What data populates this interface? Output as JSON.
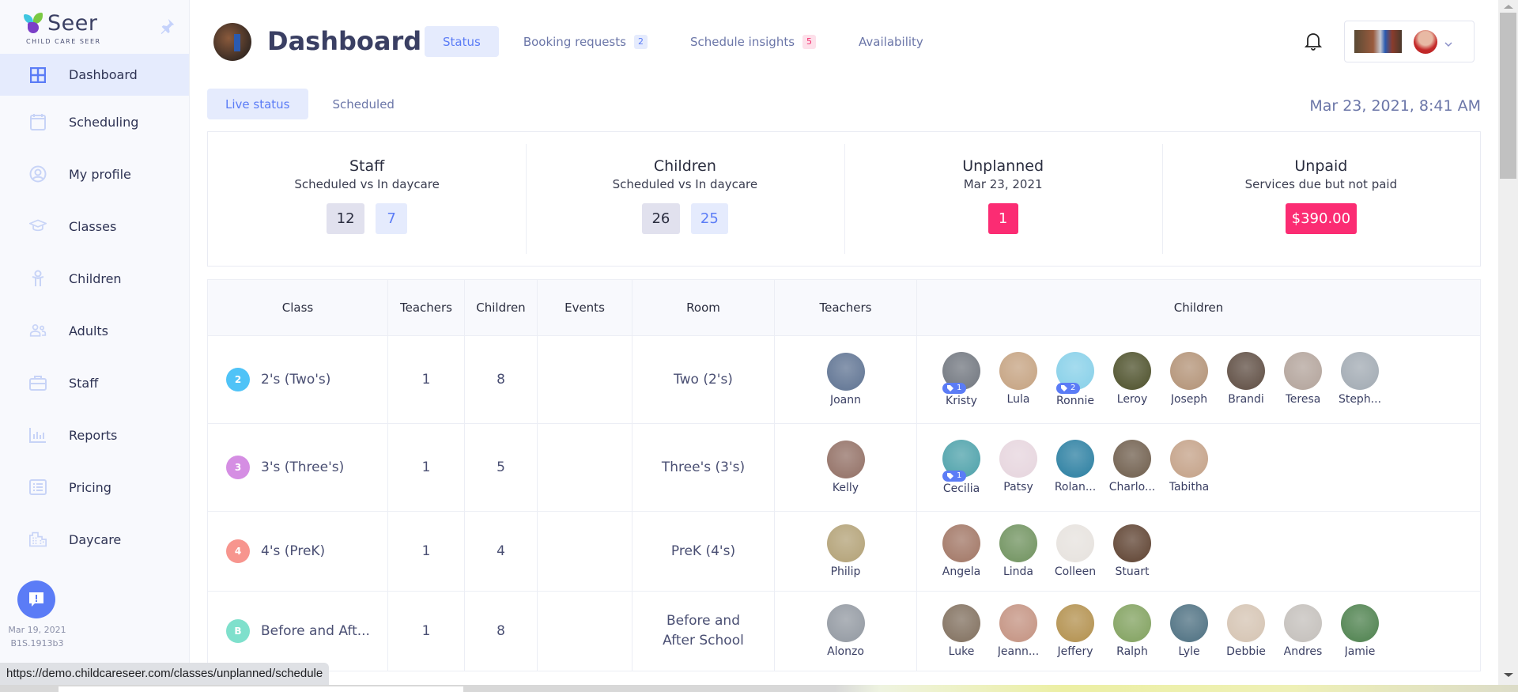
{
  "sidebar": {
    "logo_text": "Seer",
    "logo_sub": "CHILD CARE SEER",
    "items": [
      {
        "label": "Dashboard",
        "icon": "grid-icon",
        "active": true
      },
      {
        "label": "Scheduling",
        "icon": "calendar-icon"
      },
      {
        "label": "My profile",
        "icon": "user-circle-icon"
      },
      {
        "label": "Classes",
        "icon": "graduation-cap-icon"
      },
      {
        "label": "Children",
        "icon": "child-icon"
      },
      {
        "label": "Adults",
        "icon": "users-icon"
      },
      {
        "label": "Staff",
        "icon": "briefcase-icon"
      },
      {
        "label": "Reports",
        "icon": "bar-chart-icon"
      },
      {
        "label": "Pricing",
        "icon": "list-icon"
      },
      {
        "label": "Daycare",
        "icon": "building-icon"
      }
    ],
    "version_date": "Mar 19, 2021",
    "version_build": "B1S.1913b3"
  },
  "header": {
    "title": "Dashboard",
    "tabs": [
      {
        "label": "Status",
        "active": true
      },
      {
        "label": "Booking requests",
        "badge": "2",
        "badge_color": "blue"
      },
      {
        "label": "Schedule insights",
        "badge": "5",
        "badge_color": "pink"
      },
      {
        "label": "Availability"
      }
    ]
  },
  "subtabs": [
    {
      "label": "Live status",
      "active": true
    },
    {
      "label": "Scheduled"
    }
  ],
  "datetime": "Mar 23, 2021, 8:41 AM",
  "stats": [
    {
      "title": "Staff",
      "subtitle": "Scheduled vs In daycare",
      "scheduled": "12",
      "in_daycare": "7"
    },
    {
      "title": "Children",
      "subtitle": "Scheduled vs In daycare",
      "scheduled": "26",
      "in_daycare": "25"
    },
    {
      "title": "Unplanned",
      "subtitle": "Mar 23, 2021",
      "value": "1"
    },
    {
      "title": "Unpaid",
      "subtitle": "Services due but not paid",
      "value": "$390.00"
    }
  ],
  "table": {
    "headers": [
      "Class",
      "Teachers",
      "Children",
      "Events",
      "Room",
      "Teachers",
      "Children"
    ],
    "rows": [
      {
        "badge": "2",
        "badge_color": "#4fc3f7",
        "class": "2's (Two's)",
        "teachers": "1",
        "children": "8",
        "events": "",
        "room": "Two (2's)",
        "teacher_list": [
          {
            "name": "Joann",
            "color": "#6a7d9a"
          }
        ],
        "child_list": [
          {
            "name": "Kristy",
            "tag": "1",
            "color": "#7b8088"
          },
          {
            "name": "Lula",
            "color": "#c9a98a"
          },
          {
            "name": "Ronnie",
            "tag": "2",
            "color": "#8fd3ea"
          },
          {
            "name": "Leroy",
            "color": "#5a5d3a"
          },
          {
            "name": "Joseph",
            "color": "#b89a80"
          },
          {
            "name": "Brandi",
            "color": "#6a5a50"
          },
          {
            "name": "Teresa",
            "color": "#b8aaa2"
          },
          {
            "name": "Steph...",
            "color": "#a8b0b8"
          }
        ]
      },
      {
        "badge": "3",
        "badge_color": "#d58ee3",
        "class": "3's (Three's)",
        "teachers": "1",
        "children": "5",
        "events": "",
        "room": "Three's (3's)",
        "teacher_list": [
          {
            "name": "Kelly",
            "color": "#9a7a70"
          }
        ],
        "child_list": [
          {
            "name": "Cecilia",
            "tag": "1",
            "color": "#5aa8b0"
          },
          {
            "name": "Patsy",
            "color": "#e8d8e0"
          },
          {
            "name": "Rolan...",
            "color": "#3a88a8"
          },
          {
            "name": "Charlo...",
            "color": "#7a6a5a"
          },
          {
            "name": "Tabitha",
            "color": "#c8a890"
          }
        ]
      },
      {
        "badge": "4",
        "badge_color": "#f7958e",
        "class": "4's (PreK)",
        "teachers": "1",
        "children": "4",
        "events": "",
        "room": "PreK (4's)",
        "teacher_list": [
          {
            "name": "Philip",
            "color": "#b8a880"
          }
        ],
        "child_list": [
          {
            "name": "Angela",
            "color": "#a88070"
          },
          {
            "name": "Linda",
            "color": "#7a9a6a"
          },
          {
            "name": "Colleen",
            "color": "#e8e4e0"
          },
          {
            "name": "Stuart",
            "color": "#6a5040"
          }
        ]
      },
      {
        "badge": "B",
        "badge_color": "#7fe0cc",
        "class": "Before and Aft...",
        "teachers": "1",
        "children": "8",
        "events": "",
        "room": "Before and After School",
        "teacher_list": [
          {
            "name": "Alonzo",
            "color": "#9aa0a8"
          }
        ],
        "child_list": [
          {
            "name": "Luke",
            "color": "#8a7a6a"
          },
          {
            "name": "Jeann...",
            "color": "#c89a8a"
          },
          {
            "name": "Jeffery",
            "color": "#b8985a"
          },
          {
            "name": "Ralph",
            "color": "#8aa86a"
          },
          {
            "name": "Lyle",
            "color": "#5a7a8a"
          },
          {
            "name": "Debbie",
            "color": "#d8c8b8"
          },
          {
            "name": "Andres",
            "color": "#c8c4c0"
          },
          {
            "name": "Jamie",
            "color": "#5a8a5a"
          }
        ]
      }
    ]
  },
  "status_url": "https://demo.childcareseer.com/classes/unplanned/schedule",
  "colors": {
    "accent": "#5b7cf6",
    "accent_light": "#e5ebfd",
    "danger": "#fb2c73",
    "sidebar_bg": "#f8f9fd"
  }
}
